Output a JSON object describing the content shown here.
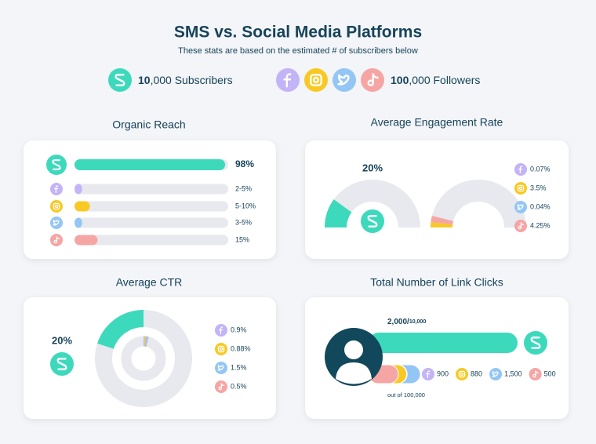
{
  "platform_colors": [
    "#3dd9bc",
    "#c3b3f7",
    "#f8c923",
    "#93c6f4",
    "#f6a5a5"
  ],
  "header": {
    "title": "SMS vs. Social Media Platforms",
    "subtitle": "These stats are based on the estimated # of subscribers below"
  },
  "audience": {
    "sms": {
      "bold": "10",
      "rest": ",000 Subscribers"
    },
    "social": {
      "bold": "100",
      "rest": ",000 Followers"
    }
  },
  "chart_data": [
    {
      "type": "bar",
      "title": "Organic Reach",
      "categories": [
        null,
        null,
        null,
        null,
        null
      ],
      "values": [
        98,
        5,
        10,
        5,
        15
      ],
      "value_labels": [
        "98%",
        "2-5%",
        "5-10%",
        "3-5%",
        "15%"
      ],
      "xlim": [
        0,
        100
      ]
    },
    {
      "type": "gauge",
      "title": "Average Engagement Rate",
      "ylim": [
        0,
        100
      ],
      "sms": {
        "value": 20,
        "value_label": "20%"
      },
      "social": {
        "categories": [
          null,
          null,
          null,
          null
        ],
        "values": [
          0.07,
          3.5,
          0.04,
          4.25
        ],
        "value_labels": [
          "0.07%",
          "3.5%",
          "0.04%",
          "4.25%"
        ]
      }
    },
    {
      "type": "donut",
      "title": "Average CTR",
      "ylim": [
        0,
        100
      ],
      "sms": {
        "value": 20,
        "value_label": "20%"
      },
      "social": {
        "categories": [
          null,
          null,
          null,
          null
        ],
        "values": [
          0.9,
          0.88,
          1.5,
          0.5
        ],
        "value_labels": [
          "0.9%",
          "0.88%",
          "1.5%",
          "0.5%"
        ]
      }
    },
    {
      "type": "link-clicks",
      "title": "Total Number of Link Clicks",
      "sms": {
        "value": 2000,
        "total": 10000,
        "value_label": "2,000/",
        "total_label": "10,000"
      },
      "social": {
        "categories": [
          null,
          null,
          null,
          null
        ],
        "values": [
          900,
          880,
          1500,
          500
        ],
        "value_labels": [
          "900",
          "880",
          "1,500",
          "500"
        ],
        "total": 100000,
        "total_label": "out of 100,000"
      }
    }
  ]
}
